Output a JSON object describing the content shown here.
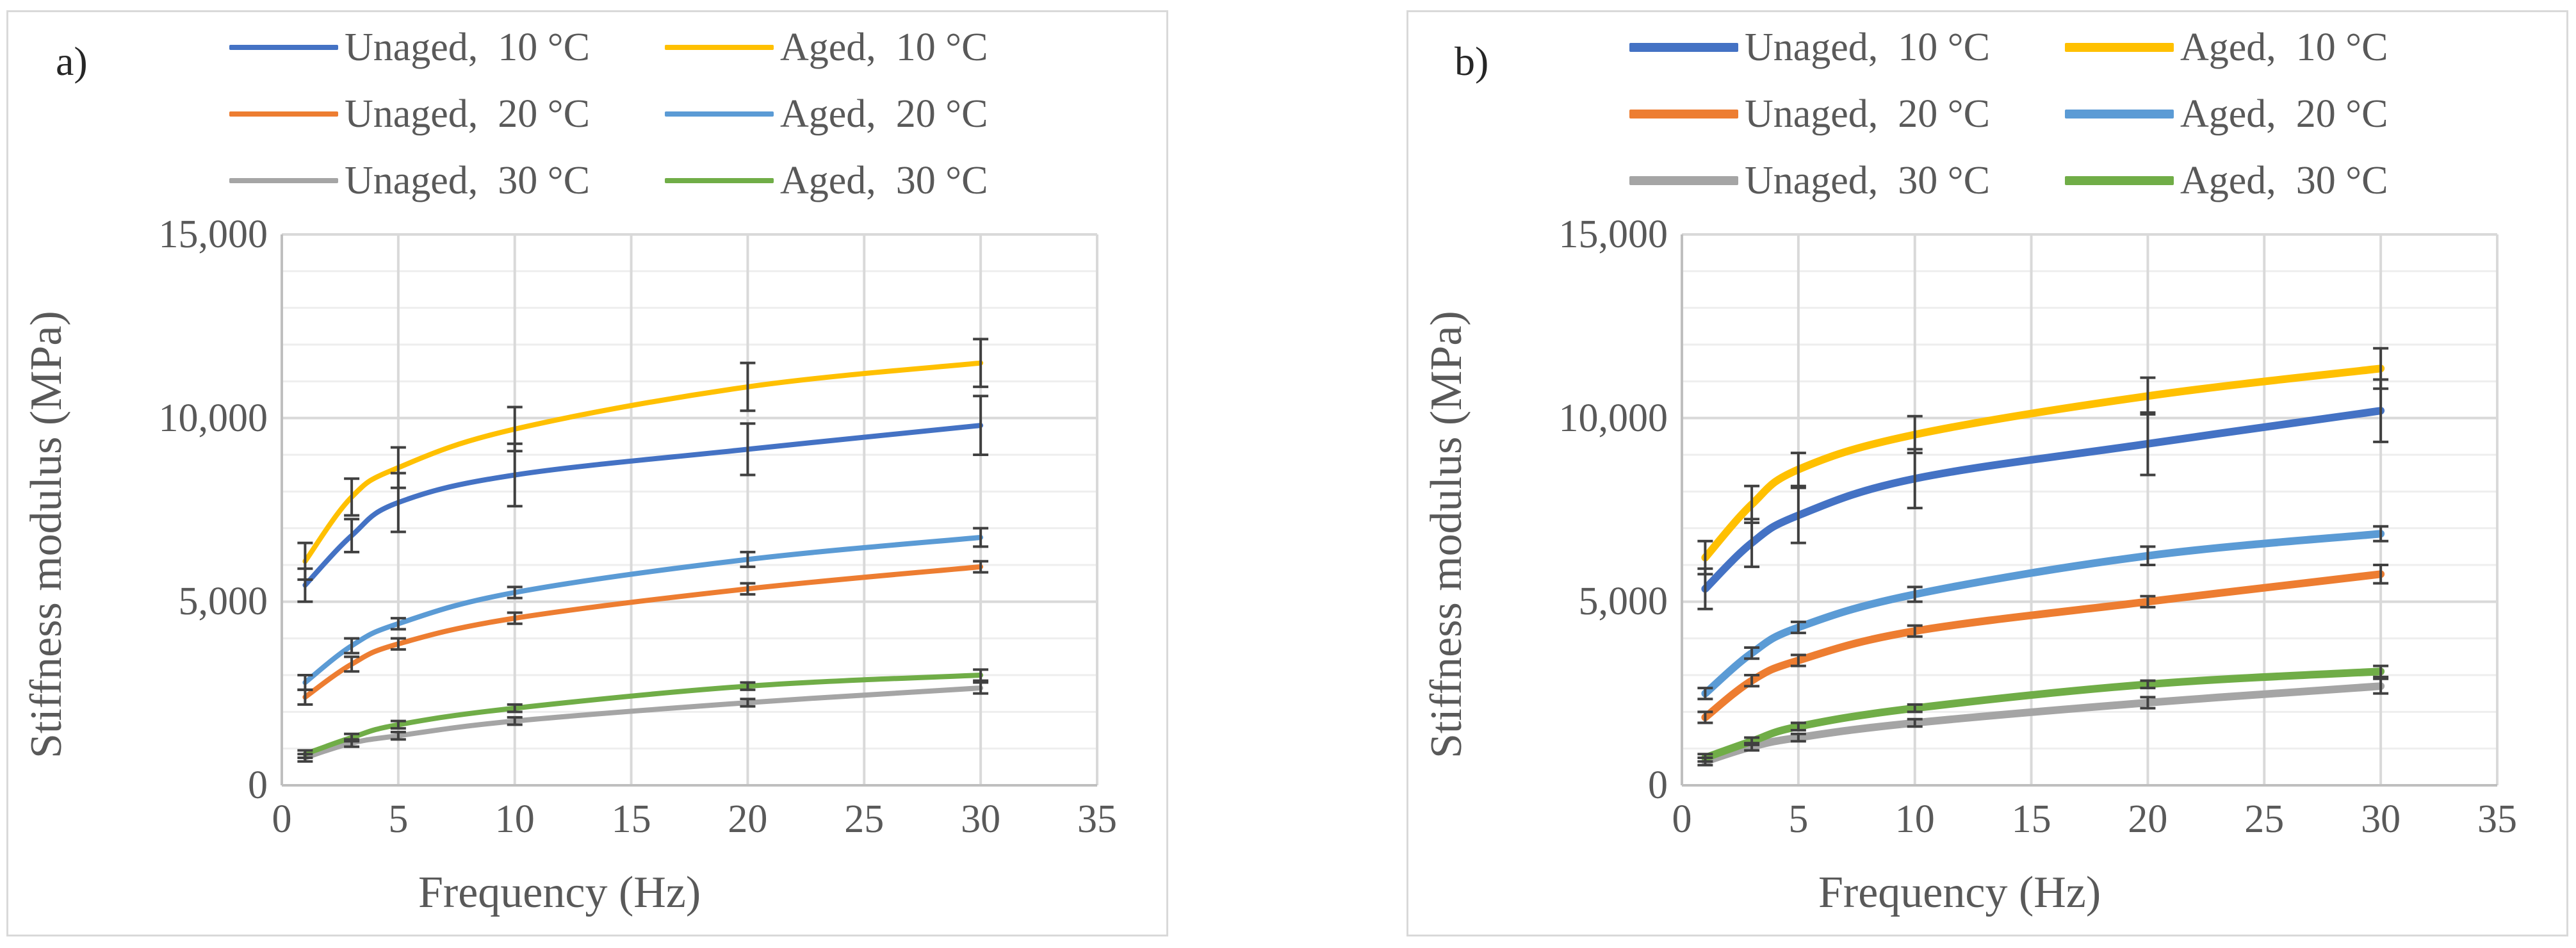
{
  "chart_data": [
    {
      "panel": "a)",
      "type": "line",
      "xlabel": "Frequency (Hz)",
      "ylabel": "Stiffness modulus (MPa)",
      "xlim": [
        0,
        35
      ],
      "ylim": [
        0,
        15000
      ],
      "xticks": [
        "0",
        "5",
        "10",
        "15",
        "20",
        "25",
        "30",
        "35"
      ],
      "yticks": [
        "0",
        "5,000",
        "10,000",
        "15,000"
      ],
      "grid": true,
      "legend_position": "top",
      "series": [
        {
          "name": "Unaged,  10 °C",
          "color": "#4472c4",
          "x": [
            1,
            3,
            5,
            10,
            20,
            30
          ],
          "values": [
            5450,
            6800,
            7700,
            8450,
            9150,
            9800
          ],
          "error": [
            450,
            450,
            800,
            850,
            700,
            800
          ]
        },
        {
          "name": "Aged,  10 °C",
          "color": "#ffc000",
          "x": [
            1,
            3,
            5,
            10,
            20,
            30
          ],
          "values": [
            6100,
            7850,
            8650,
            9700,
            10850,
            11500
          ],
          "error": [
            500,
            500,
            550,
            600,
            650,
            650
          ]
        },
        {
          "name": "Unaged,  20 °C",
          "color": "#ed7d31",
          "x": [
            1,
            3,
            5,
            10,
            20,
            30
          ],
          "values": [
            2400,
            3300,
            3850,
            4550,
            5350,
            5950
          ],
          "error": [
            200,
            200,
            150,
            150,
            150,
            150
          ]
        },
        {
          "name": "Aged,  20 °C",
          "color": "#5b9bd5",
          "x": [
            1,
            3,
            5,
            10,
            20,
            30
          ],
          "values": [
            2800,
            3800,
            4400,
            5250,
            6150,
            6750
          ],
          "error": [
            200,
            200,
            150,
            150,
            200,
            250
          ]
        },
        {
          "name": "Unaged,  30 °C",
          "color": "#a5a5a5",
          "x": [
            1,
            3,
            5,
            10,
            20,
            30
          ],
          "values": [
            750,
            1150,
            1350,
            1750,
            2250,
            2650
          ],
          "error": [
            100,
            100,
            100,
            100,
            100,
            150
          ]
        },
        {
          "name": "Aged,  30 °C",
          "color": "#70ad47",
          "x": [
            1,
            3,
            5,
            10,
            20,
            30
          ],
          "values": [
            850,
            1300,
            1650,
            2100,
            2700,
            3000
          ],
          "error": [
            100,
            100,
            100,
            100,
            100,
            150
          ]
        }
      ]
    },
    {
      "panel": "b)",
      "type": "line",
      "xlabel": "Frequency (Hz)",
      "ylabel": "Stiffness modulus (MPa)",
      "xlim": [
        0,
        35
      ],
      "ylim": [
        0,
        15000
      ],
      "xticks": [
        "0",
        "5",
        "10",
        "15",
        "20",
        "25",
        "30",
        "35"
      ],
      "yticks": [
        "0",
        "5,000",
        "10,000",
        "15,000"
      ],
      "grid": true,
      "legend_position": "top",
      "series": [
        {
          "name": "Unaged,  10 °C",
          "color": "#4472c4",
          "x": [
            1,
            3,
            5,
            10,
            20,
            30
          ],
          "values": [
            5350,
            6600,
            7350,
            8350,
            9300,
            10200
          ],
          "error": [
            550,
            650,
            750,
            800,
            850,
            850
          ]
        },
        {
          "name": "Aged,  10 °C",
          "color": "#ffc000",
          "x": [
            1,
            3,
            5,
            10,
            20,
            30
          ],
          "values": [
            6200,
            7650,
            8600,
            9550,
            10600,
            11350
          ],
          "error": [
            450,
            500,
            450,
            500,
            500,
            550
          ]
        },
        {
          "name": "Unaged,  20 °C",
          "color": "#ed7d31",
          "x": [
            1,
            3,
            5,
            10,
            20,
            30
          ],
          "values": [
            1850,
            2850,
            3400,
            4200,
            5000,
            5750
          ],
          "error": [
            150,
            150,
            150,
            150,
            150,
            250
          ]
        },
        {
          "name": "Aged,  20 °C",
          "color": "#5b9bd5",
          "x": [
            1,
            3,
            5,
            10,
            20,
            30
          ],
          "values": [
            2500,
            3600,
            4300,
            5200,
            6250,
            6850
          ],
          "error": [
            150,
            150,
            150,
            200,
            250,
            200
          ]
        },
        {
          "name": "Unaged,  30 °C",
          "color": "#a5a5a5",
          "x": [
            1,
            3,
            5,
            10,
            20,
            30
          ],
          "values": [
            650,
            1050,
            1300,
            1700,
            2250,
            2700
          ],
          "error": [
            100,
            100,
            100,
            100,
            150,
            200
          ]
        },
        {
          "name": "Aged,  30 °C",
          "color": "#70ad47",
          "x": [
            1,
            3,
            5,
            10,
            20,
            30
          ],
          "values": [
            750,
            1200,
            1600,
            2100,
            2750,
            3100
          ],
          "error": [
            100,
            100,
            100,
            100,
            100,
            150
          ]
        }
      ]
    }
  ]
}
